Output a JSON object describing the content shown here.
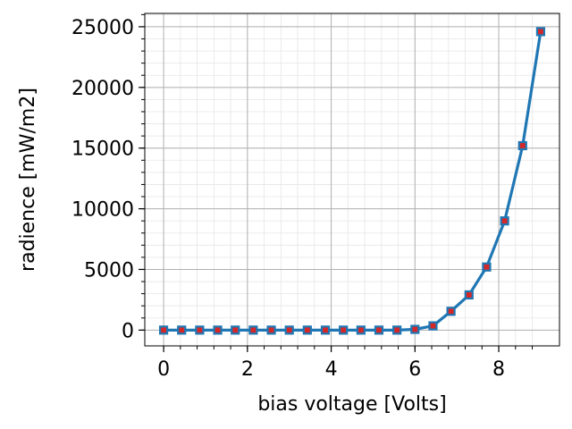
{
  "chart_data": {
    "type": "line",
    "xlabel": "bias voltage [Volts]",
    "ylabel": "radience [mW/m2]",
    "xlim": [
      -0.45,
      9.45
    ],
    "ylim": [
      -1300,
      26100
    ],
    "xticks": [
      0,
      2,
      4,
      6,
      8
    ],
    "yticks": [
      0,
      5000,
      10000,
      15000,
      20000,
      25000
    ],
    "grid": true,
    "minor_grid": true,
    "line_color": "#1f77b4",
    "marker_face_color": "#d62728",
    "series": [
      {
        "x": [
          0.0,
          0.43,
          0.86,
          1.29,
          1.71,
          2.14,
          2.57,
          3.0,
          3.43,
          3.86,
          4.29,
          4.71,
          5.14,
          5.57,
          6.0,
          6.43,
          6.86,
          7.29,
          7.71,
          8.14,
          8.57,
          9.0
        ],
        "values": [
          0,
          0,
          0,
          0,
          0,
          0,
          0,
          0,
          0,
          0,
          0,
          0,
          0,
          0,
          60,
          350,
          1550,
          2900,
          5200,
          9000,
          15200,
          24600
        ]
      }
    ]
  }
}
